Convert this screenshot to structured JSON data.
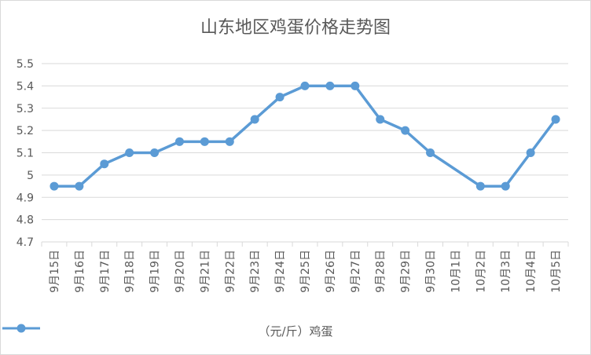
{
  "chart_data": {
    "type": "line",
    "title": "山东地区鸡蛋价格走势图",
    "categories": [
      "9月15日",
      "9月16日",
      "9月17日",
      "9月18日",
      "9月19日",
      "9月20日",
      "9月21日",
      "9月22日",
      "9月23日",
      "9月24日",
      "9月25日",
      "9月26日",
      "9月27日",
      "9月28日",
      "9月29日",
      "9月30日",
      "10月1日",
      "10月2日",
      "10月3日",
      "10月4日",
      "10月5日"
    ],
    "series": [
      {
        "name": "（元/斤）鸡蛋",
        "values": [
          4.95,
          4.95,
          5.05,
          5.1,
          5.1,
          5.15,
          5.15,
          5.15,
          5.25,
          5.35,
          5.4,
          5.4,
          5.4,
          5.25,
          5.2,
          5.1,
          null,
          4.95,
          4.95,
          5.1,
          5.25
        ]
      }
    ],
    "yticks": [
      "4.7",
      "4.8",
      "4.9",
      "5",
      "5.1",
      "5.2",
      "5.3",
      "5.4",
      "5.5"
    ],
    "ylim": [
      4.7,
      5.5
    ],
    "xlabel": "",
    "ylabel": "",
    "grid": true,
    "legend_position": "bottom",
    "line_color": "#5b9bd5",
    "gridline_color": "#d9d9d9",
    "connect_gaps": true
  }
}
